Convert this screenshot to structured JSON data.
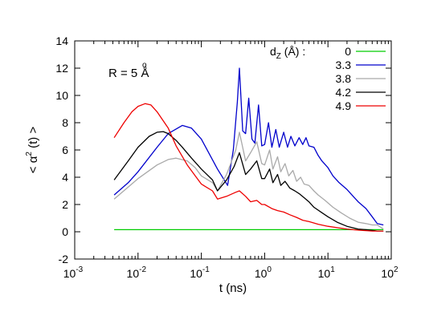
{
  "chart_data": {
    "type": "line",
    "title": "",
    "xlabel": "t (ns)",
    "ylabel_parts": {
      "pre": "< ",
      "greek": "α",
      "sup": "2",
      "post": " (t) >"
    },
    "x_scale": "log",
    "xlim": [
      0.001,
      100
    ],
    "ylim": [
      -2,
      14
    ],
    "x_ticks": [
      {
        "value": 0.001,
        "base": "10",
        "exp": "-3"
      },
      {
        "value": 0.01,
        "base": "10",
        "exp": "-2"
      },
      {
        "value": 0.1,
        "base": "10",
        "exp": "-1"
      },
      {
        "value": 1,
        "base": "10",
        "exp": "0"
      },
      {
        "value": 10,
        "base": "10",
        "exp": "1"
      },
      {
        "value": 100,
        "base": "10",
        "exp": "2"
      }
    ],
    "y_ticks": [
      -2,
      0,
      2,
      4,
      6,
      8,
      10,
      12,
      14
    ],
    "grid": false,
    "annotation": {
      "text_pre": "R = 5 ",
      "text_unit": "Å",
      "ring": "o"
    },
    "legend": {
      "title_pre": "d",
      "title_sub": "Z",
      "title_post": " (Å) :",
      "placement": "top-right"
    },
    "series": [
      {
        "name": "0",
        "color": "#00cc00",
        "x": [
          0.0042,
          0.01,
          0.1,
          1,
          10,
          75
        ],
        "y": [
          0.15,
          0.15,
          0.15,
          0.15,
          0.15,
          0.15
        ]
      },
      {
        "name": "3.3",
        "color": "#0000cc",
        "x": [
          0.0042,
          0.007,
          0.01,
          0.02,
          0.03,
          0.05,
          0.07,
          0.1,
          0.18,
          0.26,
          0.32,
          0.37,
          0.4,
          0.45,
          0.5,
          0.56,
          0.63,
          0.7,
          0.8,
          0.9,
          1.0,
          1.15,
          1.3,
          1.5,
          1.7,
          2.0,
          2.3,
          2.6,
          3.0,
          3.5,
          4.0,
          4.5,
          5.0,
          6.0,
          7.0,
          8.0,
          10.0,
          12.0,
          15.0,
          20.0,
          25.0,
          30.0,
          40.0,
          50.0,
          60.0,
          75.0
        ],
        "y": [
          2.7,
          3.6,
          4.4,
          6.2,
          7.2,
          7.8,
          7.6,
          6.8,
          4.6,
          3.4,
          6.0,
          9.5,
          12.0,
          7.4,
          7.2,
          9.8,
          6.8,
          6.5,
          9.3,
          6.3,
          6.4,
          8.0,
          6.2,
          7.5,
          6.2,
          7.3,
          6.2,
          7.0,
          6.3,
          6.9,
          6.4,
          6.9,
          6.3,
          6.2,
          5.6,
          5.2,
          4.7,
          4.1,
          3.6,
          3.1,
          2.6,
          2.2,
          1.7,
          1.1,
          0.6,
          0.5
        ]
      },
      {
        "name": "3.8",
        "color": "#a9a9a9",
        "x": [
          0.0042,
          0.01,
          0.02,
          0.03,
          0.04,
          0.06,
          0.08,
          0.1,
          0.15,
          0.18,
          0.25,
          0.35,
          0.4,
          0.5,
          0.6,
          0.75,
          0.9,
          1.0,
          1.2,
          1.35,
          1.6,
          1.8,
          2.1,
          2.4,
          2.8,
          3.2,
          3.7,
          4.2,
          5.0,
          6.0,
          7.0,
          9.0,
          12.0,
          16.0,
          22.0,
          30.0,
          40.0,
          50.0,
          60.0,
          75.0
        ],
        "y": [
          2.4,
          3.9,
          4.9,
          5.3,
          5.4,
          5.2,
          4.7,
          4.1,
          3.6,
          3.0,
          4.2,
          6.0,
          7.3,
          5.2,
          5.8,
          6.6,
          5.0,
          4.9,
          6.0,
          4.6,
          5.5,
          4.4,
          5.0,
          4.1,
          4.5,
          3.7,
          4.0,
          3.5,
          3.4,
          3.0,
          2.7,
          2.3,
          1.8,
          1.4,
          1.0,
          0.7,
          0.6,
          0.5,
          0.5,
          0.2
        ]
      },
      {
        "name": "4.2",
        "color": "#000000",
        "x": [
          0.0042,
          0.007,
          0.01,
          0.015,
          0.02,
          0.025,
          0.03,
          0.04,
          0.05,
          0.07,
          0.1,
          0.15,
          0.18,
          0.25,
          0.33,
          0.4,
          0.5,
          0.6,
          0.75,
          0.9,
          1.0,
          1.2,
          1.35,
          1.6,
          1.8,
          2.1,
          2.5,
          3.0,
          3.5,
          4.2,
          5.0,
          6.0,
          8.0,
          10.0,
          14.0,
          20.0,
          30.0,
          40.0,
          50.0,
          60.0,
          75.0
        ],
        "y": [
          3.8,
          5.2,
          6.2,
          7.0,
          7.3,
          7.35,
          7.2,
          6.7,
          6.2,
          5.4,
          4.6,
          3.8,
          3.0,
          3.8,
          4.8,
          5.8,
          4.2,
          4.6,
          5.2,
          3.9,
          3.9,
          4.6,
          3.6,
          4.2,
          3.4,
          3.7,
          3.2,
          3.0,
          2.8,
          2.5,
          2.2,
          1.8,
          1.4,
          1.1,
          0.7,
          0.4,
          0.2,
          0.15,
          0.1,
          0.05,
          0.05
        ]
      },
      {
        "name": "4.9",
        "color": "#ee0000",
        "x": [
          0.0042,
          0.006,
          0.008,
          0.01,
          0.013,
          0.016,
          0.02,
          0.03,
          0.04,
          0.06,
          0.08,
          0.1,
          0.15,
          0.18,
          0.25,
          0.35,
          0.4,
          0.5,
          0.6,
          0.75,
          0.9,
          1.0,
          1.3,
          1.6,
          2.0,
          2.5,
          3.2,
          4.0,
          5.0,
          7.0,
          10.0,
          14.0,
          20.0,
          30.0,
          40.0,
          50.0,
          60.0,
          75.0
        ],
        "y": [
          6.9,
          8.0,
          8.8,
          9.2,
          9.4,
          9.3,
          8.8,
          7.6,
          6.3,
          4.9,
          4.1,
          3.5,
          3.0,
          2.4,
          2.6,
          2.9,
          3.0,
          2.6,
          2.2,
          2.3,
          2.0,
          2.0,
          1.7,
          1.55,
          1.45,
          1.25,
          1.05,
          0.85,
          0.75,
          0.55,
          0.4,
          0.3,
          0.2,
          0.12,
          0.08,
          0.05,
          0.05,
          0.05
        ]
      }
    ]
  }
}
